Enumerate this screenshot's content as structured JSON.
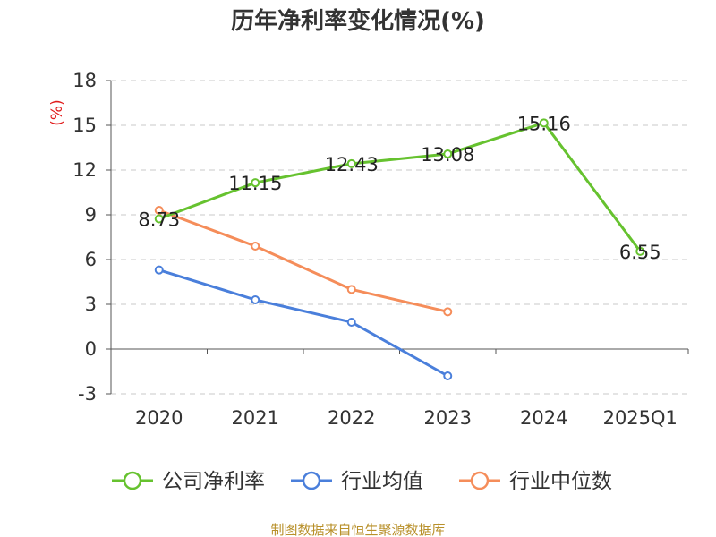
{
  "chart_data": {
    "type": "line",
    "title": "历年净利率变化情况(%)",
    "ylabel": "(%)",
    "xlabel": "",
    "categories": [
      "2020",
      "2021",
      "2022",
      "2023",
      "2024",
      "2025Q1"
    ],
    "ylim": [
      -3,
      18
    ],
    "yticks": [
      -3,
      0,
      3,
      6,
      9,
      12,
      15,
      18
    ],
    "grid": true,
    "legend_position": "bottom",
    "series": [
      {
        "name": "公司净利率",
        "color": "#66c22f",
        "values": [
          8.73,
          11.15,
          12.43,
          13.08,
          15.16,
          6.55
        ],
        "labels": [
          "8.73",
          "11.15",
          "12.43",
          "13.08",
          "15.16",
          "6.55"
        ]
      },
      {
        "name": "行业均值",
        "color": "#4a7fdb",
        "values": [
          5.3,
          3.3,
          1.8,
          -1.8,
          null,
          null
        ]
      },
      {
        "name": "行业中位数",
        "color": "#f58d5a",
        "values": [
          9.3,
          6.9,
          4.0,
          2.5,
          null,
          null
        ]
      }
    ]
  },
  "footer": {
    "source": "制图数据来自恒生聚源数据库"
  }
}
